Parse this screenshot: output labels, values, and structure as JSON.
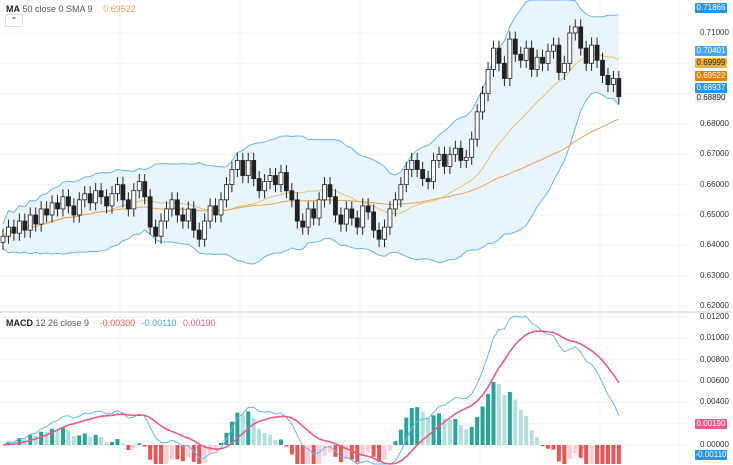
{
  "main_legend": {
    "name": "MA",
    "params": "50 close 0 SMA 9",
    "value": "0.69522",
    "collapse_icon": "chevron-up-icon"
  },
  "macd_legend": {
    "name": "MACD",
    "params": "12 26 close 9",
    "hist": "-0.00300",
    "macd": "-0.00110",
    "signal": "0.00190"
  },
  "colors": {
    "up": "#222222",
    "down": "#222222",
    "band": "#64b5f6",
    "band_fill": "#e3f2fd",
    "ma": "#f0a050",
    "basis": "#e8c060",
    "macd": "#64b5f6",
    "signal": "#f0588a",
    "hist_up": "#26a69a",
    "hist_up_light": "#b2dfdb",
    "hist_down": "#ef5350",
    "hist_down_light": "#ffcdd2"
  },
  "price_ticks": [
    "0.71000",
    "0.68000",
    "0.67000",
    "0.66000",
    "0.65000",
    "0.64000",
    "0.63000",
    "0.62000"
  ],
  "macd_ticks": [
    "0.01200",
    "0.01000",
    "0.00800",
    "0.00600",
    "0.00400",
    "0.00000"
  ],
  "price_labels": [
    {
      "text": "0.71866",
      "color": "#2196f3"
    },
    {
      "text": "0.70401",
      "color": "#42a5f5"
    },
    {
      "text": "0.69999",
      "color": "#f9b233",
      "dark": true
    },
    {
      "text": "0.69522",
      "color": "#e67e00"
    },
    {
      "text": "0.68937",
      "color": "#2196f3"
    },
    {
      "text": "0.68890",
      "color": "#f0f0f0",
      "dark": true
    }
  ],
  "macd_labels": [
    {
      "text": "0.00190",
      "color": "#f0588a"
    },
    {
      "text": "-0.00110",
      "color": "#2196f3"
    }
  ],
  "chart_data": {
    "type": "candlestick",
    "indicators": [
      "MA 50",
      "Bollinger Bands",
      "MACD 12 26 9"
    ],
    "ylim": [
      0.615,
      0.722
    ],
    "closes": [
      0.643,
      0.646,
      0.644,
      0.648,
      0.645,
      0.65,
      0.647,
      0.652,
      0.65,
      0.654,
      0.652,
      0.656,
      0.653,
      0.65,
      0.655,
      0.657,
      0.654,
      0.658,
      0.656,
      0.653,
      0.657,
      0.66,
      0.655,
      0.652,
      0.658,
      0.661,
      0.656,
      0.646,
      0.643,
      0.648,
      0.652,
      0.655,
      0.65,
      0.648,
      0.652,
      0.645,
      0.642,
      0.648,
      0.653,
      0.65,
      0.655,
      0.66,
      0.665,
      0.668,
      0.663,
      0.668,
      0.662,
      0.658,
      0.661,
      0.663,
      0.66,
      0.664,
      0.658,
      0.655,
      0.648,
      0.646,
      0.652,
      0.649,
      0.655,
      0.66,
      0.656,
      0.65,
      0.647,
      0.652,
      0.649,
      0.646,
      0.653,
      0.651,
      0.645,
      0.642,
      0.646,
      0.652,
      0.655,
      0.66,
      0.665,
      0.668,
      0.665,
      0.662,
      0.661,
      0.668,
      0.67,
      0.666,
      0.67,
      0.672,
      0.668,
      0.669,
      0.675,
      0.684,
      0.69,
      0.698,
      0.705,
      0.7,
      0.695,
      0.708,
      0.703,
      0.701,
      0.705,
      0.698,
      0.702,
      0.7,
      0.704,
      0.706,
      0.697,
      0.7,
      0.71,
      0.712,
      0.705,
      0.7,
      0.706,
      0.701,
      0.696,
      0.693,
      0.695,
      0.689
    ]
  }
}
